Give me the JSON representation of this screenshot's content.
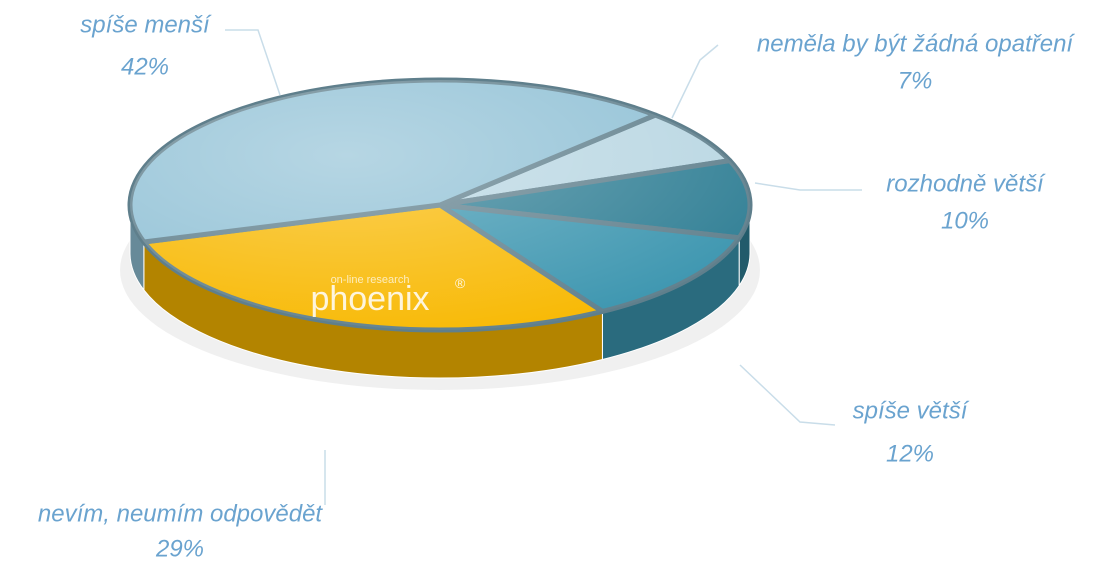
{
  "chart_data": {
    "type": "pie",
    "categories": [
      "neměla by být žádná opatření",
      "rozhodně větší",
      "spíše větší",
      "nevím, neumím odpovědět",
      "spíše menší"
    ],
    "values": [
      7,
      10,
      12,
      29,
      42
    ],
    "value_labels": [
      "7%",
      "10%",
      "12%",
      "29%",
      "42%"
    ],
    "colors": [
      "#b8d6e2",
      "#2f7e94",
      "#3b95af",
      "#f8b800",
      "#8fc0d5"
    ],
    "watermark": "phoenix",
    "watermark_subtitle": "on-line research",
    "watermark_mark": "®"
  }
}
